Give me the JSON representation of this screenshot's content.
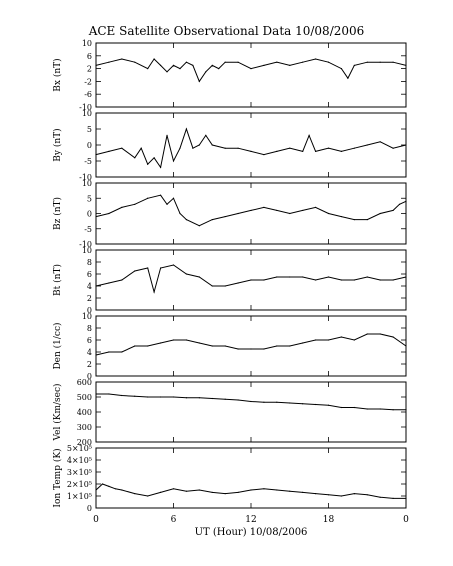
{
  "figure": {
    "title": "ACE Satellite Observational Data   10/08/2006",
    "xlabel": "UT (Hour)   10/08/2006",
    "x_ticks": [
      "0",
      "6",
      "12",
      "18",
      "0"
    ]
  },
  "chart_data": [
    {
      "type": "line",
      "ylabel": "Bx (nT)",
      "ylim": [
        -10,
        10
      ],
      "y_ticks": [
        "10",
        "6",
        "2",
        "-2",
        "-6",
        "-10"
      ],
      "y_tick_values": [
        10,
        6,
        2,
        -2,
        -6,
        -10
      ],
      "xlim": [
        0,
        24
      ],
      "series": [
        {
          "x": [
            0,
            1,
            2,
            3,
            4,
            4.5,
            5,
            5.5,
            6,
            6.5,
            7,
            7.5,
            8,
            8.5,
            9,
            9.5,
            10,
            11,
            12,
            13,
            14,
            15,
            16,
            17,
            18,
            19,
            19.5,
            20,
            21,
            22,
            23,
            24
          ],
          "y": [
            3,
            4,
            5,
            4,
            2,
            5,
            3,
            1,
            3,
            2,
            4,
            3,
            -2,
            1,
            3,
            2,
            4,
            4,
            2,
            3,
            4,
            3,
            4,
            5,
            4,
            2,
            -1,
            3,
            4,
            4,
            4,
            3
          ]
        }
      ]
    },
    {
      "type": "line",
      "ylabel": "By (nT)",
      "ylim": [
        -10,
        10
      ],
      "y_ticks": [
        "10",
        "5",
        "0",
        "-5",
        "-10"
      ],
      "y_tick_values": [
        10,
        5,
        0,
        -5,
        -10
      ],
      "xlim": [
        0,
        24
      ],
      "series": [
        {
          "x": [
            0,
            1,
            2,
            3,
            3.5,
            4,
            4.5,
            5,
            5.5,
            6,
            6.5,
            7,
            7.5,
            8,
            8.5,
            9,
            10,
            11,
            12,
            13,
            14,
            15,
            16,
            16.5,
            17,
            18,
            19,
            20,
            21,
            22,
            23,
            24
          ],
          "y": [
            -3,
            -2,
            -1,
            -4,
            -1,
            -6,
            -4,
            -7,
            3,
            -5,
            -1,
            5,
            -1,
            0,
            3,
            0,
            -1,
            -1,
            -2,
            -3,
            -2,
            -1,
            -2,
            3,
            -2,
            -1,
            -2,
            -1,
            0,
            1,
            -1,
            0
          ]
        }
      ]
    },
    {
      "type": "line",
      "ylabel": "Bz (nT)",
      "ylim": [
        -10,
        10
      ],
      "y_ticks": [
        "10",
        "5",
        "0",
        "-5",
        "-10"
      ],
      "y_tick_values": [
        10,
        5,
        0,
        -5,
        -10
      ],
      "xlim": [
        0,
        24
      ],
      "series": [
        {
          "x": [
            0,
            1,
            2,
            3,
            4,
            5,
            5.5,
            6,
            6.5,
            7,
            8,
            9,
            10,
            11,
            12,
            13,
            14,
            15,
            16,
            17,
            18,
            19,
            20,
            21,
            22,
            23,
            23.5,
            24
          ],
          "y": [
            -1,
            0,
            2,
            3,
            5,
            6,
            3,
            5,
            0,
            -2,
            -4,
            -2,
            -1,
            0,
            1,
            2,
            1,
            0,
            1,
            2,
            0,
            -1,
            -2,
            -2,
            0,
            1,
            3,
            4
          ]
        }
      ]
    },
    {
      "type": "line",
      "ylabel": "Bt (nT)",
      "ylim": [
        0,
        10
      ],
      "y_ticks": [
        "10",
        "8",
        "6",
        "4",
        "2",
        "0"
      ],
      "y_tick_values": [
        10,
        8,
        6,
        4,
        2,
        0
      ],
      "xlim": [
        0,
        24
      ],
      "series": [
        {
          "x": [
            0,
            1,
            2,
            3,
            4,
            4.5,
            5,
            6,
            7,
            8,
            9,
            10,
            11,
            12,
            13,
            14,
            15,
            16,
            17,
            18,
            19,
            20,
            21,
            22,
            23,
            24
          ],
          "y": [
            4,
            4.5,
            5,
            6.5,
            7,
            3,
            7,
            7.5,
            6,
            5.5,
            4,
            4,
            4.5,
            5,
            5,
            5.5,
            5.5,
            5.5,
            5,
            5.5,
            5,
            5,
            5.5,
            5,
            5,
            5.5
          ]
        }
      ]
    },
    {
      "type": "line",
      "ylabel": "Den (1/cc)",
      "ylim": [
        0,
        10
      ],
      "y_ticks": [
        "10",
        "8",
        "6",
        "4",
        "2",
        "0"
      ],
      "y_tick_values": [
        10,
        8,
        6,
        4,
        2,
        0
      ],
      "xlim": [
        0,
        24
      ],
      "series": [
        {
          "x": [
            0,
            1,
            2,
            3,
            4,
            5,
            6,
            7,
            8,
            9,
            10,
            11,
            12,
            13,
            14,
            15,
            16,
            17,
            18,
            19,
            20,
            21,
            22,
            23,
            24
          ],
          "y": [
            3.5,
            4,
            4,
            5,
            5,
            5.5,
            6,
            6,
            5.5,
            5,
            5,
            4.5,
            4.5,
            4.5,
            5,
            5,
            5.5,
            6,
            6,
            6.5,
            6,
            7,
            7,
            6.5,
            5
          ]
        }
      ]
    },
    {
      "type": "line",
      "ylabel": "Vel (Km/sec)",
      "ylim": [
        200,
        600
      ],
      "y_ticks": [
        "600",
        "500",
        "400",
        "300",
        "200"
      ],
      "y_tick_values": [
        600,
        500,
        400,
        300,
        200
      ],
      "xlim": [
        0,
        24
      ],
      "series": [
        {
          "x": [
            0,
            1,
            2,
            3,
            4,
            5,
            6,
            7,
            8,
            9,
            10,
            11,
            12,
            13,
            14,
            15,
            16,
            17,
            18,
            19,
            20,
            21,
            22,
            23,
            24
          ],
          "y": [
            520,
            520,
            510,
            505,
            500,
            500,
            500,
            495,
            495,
            490,
            485,
            480,
            470,
            465,
            465,
            460,
            455,
            450,
            445,
            430,
            430,
            420,
            420,
            415,
            415
          ]
        }
      ]
    },
    {
      "type": "line",
      "ylabel": "Ion Temp (K)",
      "ylim": [
        0,
        500000
      ],
      "y_ticks": [
        "5×10⁵",
        "4×10⁵",
        "3×10⁵",
        "2×10⁵",
        "1×10⁵",
        "0"
      ],
      "y_tick_values": [
        500000,
        400000,
        300000,
        200000,
        100000,
        0
      ],
      "xlim": [
        0,
        24
      ],
      "series": [
        {
          "x": [
            0,
            0.5,
            1,
            1.5,
            2,
            3,
            4,
            5,
            6,
            7,
            8,
            9,
            10,
            11,
            12,
            13,
            14,
            15,
            16,
            17,
            18,
            19,
            20,
            21,
            22,
            23,
            24
          ],
          "y": [
            150000,
            200000,
            180000,
            160000,
            150000,
            120000,
            100000,
            130000,
            160000,
            140000,
            150000,
            130000,
            120000,
            130000,
            150000,
            160000,
            150000,
            140000,
            130000,
            120000,
            110000,
            100000,
            120000,
            110000,
            90000,
            80000,
            80000
          ]
        }
      ]
    }
  ]
}
